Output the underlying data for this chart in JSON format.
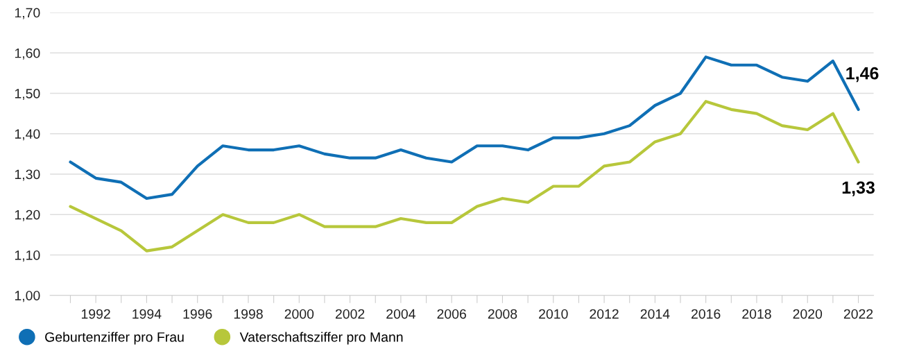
{
  "chart_data": {
    "type": "line",
    "x": [
      1991,
      1992,
      1993,
      1994,
      1995,
      1996,
      1997,
      1998,
      1999,
      2000,
      2001,
      2002,
      2003,
      2004,
      2005,
      2006,
      2007,
      2008,
      2009,
      2010,
      2011,
      2012,
      2013,
      2014,
      2015,
      2016,
      2017,
      2018,
      2019,
      2020,
      2021,
      2022
    ],
    "series": [
      {
        "name": "Geburtenziffer pro Frau",
        "color": "#0f6fb5",
        "values": [
          1.33,
          1.29,
          1.28,
          1.24,
          1.25,
          1.32,
          1.37,
          1.36,
          1.36,
          1.37,
          1.35,
          1.34,
          1.34,
          1.36,
          1.34,
          1.33,
          1.37,
          1.37,
          1.36,
          1.39,
          1.39,
          1.4,
          1.42,
          1.47,
          1.5,
          1.59,
          1.57,
          1.57,
          1.54,
          1.53,
          1.58,
          1.46
        ]
      },
      {
        "name": "Vaterschaftsziffer pro Mann",
        "color": "#b7c73b",
        "values": [
          1.22,
          1.19,
          1.16,
          1.11,
          1.12,
          1.16,
          1.2,
          1.18,
          1.18,
          1.2,
          1.17,
          1.17,
          1.17,
          1.19,
          1.18,
          1.18,
          1.22,
          1.24,
          1.23,
          1.27,
          1.27,
          1.32,
          1.33,
          1.38,
          1.4,
          1.48,
          1.46,
          1.45,
          1.42,
          1.41,
          1.45,
          1.33
        ]
      }
    ],
    "xlim": [
      1990.2,
      2022.6
    ],
    "xticks": [
      {
        "value": 1991,
        "label": null
      },
      1992,
      {
        "value": 1993,
        "label": null
      },
      1994,
      {
        "value": 1995,
        "label": null
      },
      1996,
      {
        "value": 1997,
        "label": null
      },
      1998,
      {
        "value": 1999,
        "label": null
      },
      2000,
      {
        "value": 2001,
        "label": null
      },
      2002,
      {
        "value": 2003,
        "label": null
      },
      2004,
      {
        "value": 2005,
        "label": null
      },
      2006,
      {
        "value": 2007,
        "label": null
      },
      2008,
      {
        "value": 2009,
        "label": null
      },
      2010,
      {
        "value": 2011,
        "label": null
      },
      2012,
      {
        "value": 2013,
        "label": null
      },
      2014,
      {
        "value": 2015,
        "label": null
      },
      2016,
      {
        "value": 2017,
        "label": null
      },
      2018,
      {
        "value": 2019,
        "label": null
      },
      2020,
      {
        "value": 2021,
        "label": null
      },
      2022
    ],
    "ylim": [
      1.0,
      1.7
    ],
    "yticks": [
      {
        "value": 1.0,
        "label": "1,00"
      },
      {
        "value": 1.1,
        "label": "1,10"
      },
      {
        "value": 1.2,
        "label": "1,20"
      },
      {
        "value": 1.3,
        "label": "1,30"
      },
      {
        "value": 1.4,
        "label": "1,40"
      },
      {
        "value": 1.5,
        "label": "1,50"
      },
      {
        "value": 1.6,
        "label": "1,60"
      },
      {
        "value": 1.7,
        "label": "1,70"
      }
    ],
    "annotations": [
      {
        "text": "1,46",
        "x": 2022,
        "y": 1.46
      },
      {
        "text": "1,33",
        "x": 2022,
        "y": 1.33
      }
    ],
    "grid": "y",
    "legend": "bottom left",
    "marker": "none",
    "line_style": "solid"
  }
}
